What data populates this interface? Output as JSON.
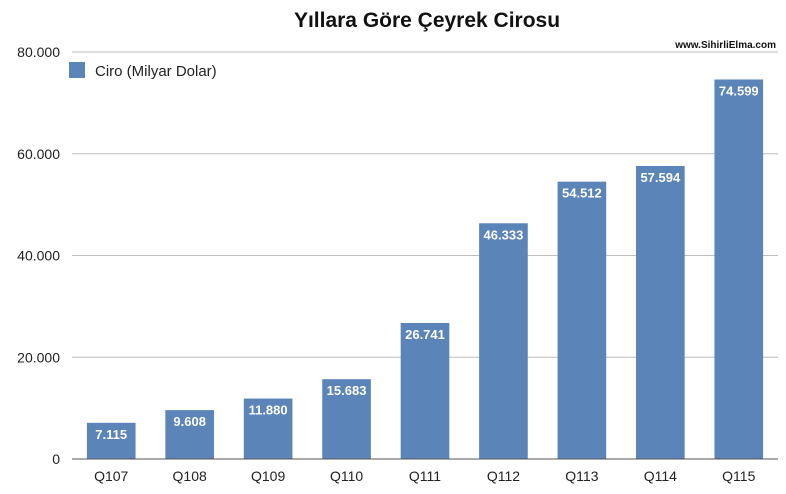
{
  "chart_data": {
    "type": "bar",
    "title": "Yıllara Göre Çeyrek Cirosu",
    "watermark": "www.SihirliElma.com",
    "xlabel": "",
    "ylabel": "",
    "categories": [
      "Q107",
      "Q108",
      "Q109",
      "Q110",
      "Q111",
      "Q112",
      "Q113",
      "Q114",
      "Q115"
    ],
    "series": [
      {
        "name": "Ciro (Milyar Dolar)",
        "color": "#5b84b9",
        "values": [
          7115,
          9608,
          11880,
          15683,
          26741,
          46333,
          54512,
          57594,
          74599
        ],
        "labels": [
          "7.115",
          "9.608",
          "11.880",
          "15.683",
          "26.741",
          "46.333",
          "54.512",
          "57.594",
          "74.599"
        ]
      }
    ],
    "ylim": [
      0,
      80000
    ],
    "yticks": [
      0,
      20000,
      40000,
      60000,
      80000
    ],
    "ytick_labels": [
      "0",
      "20.000",
      "40.000",
      "60.000",
      "80.000"
    ],
    "grid": true,
    "legend": "top-left"
  }
}
